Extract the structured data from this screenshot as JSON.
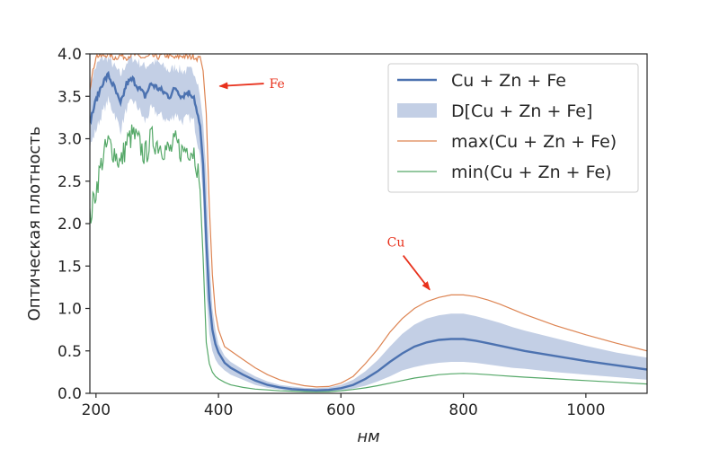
{
  "chart_data": {
    "type": "line",
    "xlabel": "нм",
    "ylabel": "Оптическая плотность",
    "xlim": [
      190,
      1100
    ],
    "ylim": [
      0.0,
      4.0
    ],
    "xticks": [
      200,
      400,
      600,
      800,
      1000
    ],
    "yticks": [
      0.0,
      0.5,
      1.0,
      1.5,
      2.0,
      2.5,
      3.0,
      3.5,
      4.0
    ],
    "ytick_labels": [
      "0.0",
      "0.5",
      "1.0",
      "1.5",
      "2.0",
      "2.5",
      "3.0",
      "3.5",
      "4.0"
    ],
    "grid": false,
    "legend_position": "top-right",
    "colors": {
      "mean": "#4c72b0",
      "band": "#c3cfe5",
      "max": "#dd8452",
      "min": "#55a868",
      "annotation": "#e8311c"
    },
    "x": [
      190,
      200,
      210,
      220,
      230,
      240,
      250,
      260,
      270,
      280,
      290,
      300,
      310,
      320,
      330,
      340,
      350,
      360,
      365,
      370,
      375,
      380,
      385,
      390,
      395,
      400,
      410,
      420,
      440,
      460,
      480,
      500,
      520,
      540,
      560,
      580,
      600,
      620,
      640,
      660,
      680,
      700,
      720,
      740,
      760,
      780,
      800,
      820,
      840,
      860,
      880,
      900,
      950,
      1000,
      1050,
      1100
    ],
    "series": [
      {
        "name": "Cu + Zn + Fe",
        "role": "mean",
        "values": [
          3.2,
          3.45,
          3.65,
          3.75,
          3.6,
          3.4,
          3.65,
          3.7,
          3.6,
          3.5,
          3.65,
          3.6,
          3.55,
          3.5,
          3.6,
          3.5,
          3.55,
          3.5,
          3.3,
          3.15,
          2.7,
          1.8,
          1.1,
          0.75,
          0.58,
          0.48,
          0.36,
          0.3,
          0.22,
          0.15,
          0.1,
          0.07,
          0.05,
          0.04,
          0.035,
          0.04,
          0.06,
          0.1,
          0.17,
          0.26,
          0.37,
          0.47,
          0.55,
          0.6,
          0.63,
          0.64,
          0.64,
          0.62,
          0.59,
          0.56,
          0.53,
          0.5,
          0.44,
          0.38,
          0.33,
          0.28
        ]
      },
      {
        "name": "D[Cu + Zn + Fe]",
        "role": "band",
        "upper": [
          3.65,
          3.85,
          3.95,
          3.95,
          3.85,
          3.75,
          3.9,
          3.95,
          3.9,
          3.85,
          3.9,
          3.9,
          3.85,
          3.8,
          3.85,
          3.8,
          3.8,
          3.8,
          3.7,
          3.5,
          3.2,
          2.6,
          1.6,
          1.0,
          0.75,
          0.58,
          0.44,
          0.37,
          0.28,
          0.2,
          0.14,
          0.1,
          0.08,
          0.065,
          0.06,
          0.07,
          0.1,
          0.16,
          0.26,
          0.39,
          0.55,
          0.7,
          0.81,
          0.88,
          0.92,
          0.94,
          0.94,
          0.91,
          0.87,
          0.83,
          0.78,
          0.74,
          0.65,
          0.56,
          0.48,
          0.42
        ],
        "lower": [
          2.9,
          3.1,
          3.3,
          3.45,
          3.3,
          3.1,
          3.35,
          3.45,
          3.35,
          3.2,
          3.35,
          3.3,
          3.25,
          3.2,
          3.3,
          3.2,
          3.25,
          3.2,
          3.0,
          2.8,
          2.3,
          1.2,
          0.7,
          0.5,
          0.4,
          0.34,
          0.27,
          0.22,
          0.16,
          0.1,
          0.065,
          0.045,
          0.03,
          0.025,
          0.02,
          0.022,
          0.035,
          0.055,
          0.09,
          0.14,
          0.2,
          0.27,
          0.31,
          0.34,
          0.36,
          0.37,
          0.37,
          0.36,
          0.34,
          0.32,
          0.3,
          0.29,
          0.25,
          0.22,
          0.19,
          0.16
        ]
      },
      {
        "name": "max(Cu + Zn + Fe)",
        "role": "max",
        "values": [
          3.6,
          3.98,
          3.97,
          4.0,
          3.95,
          3.98,
          3.96,
          4.0,
          3.97,
          3.95,
          3.98,
          3.96,
          3.99,
          3.97,
          3.95,
          3.98,
          3.96,
          3.97,
          3.95,
          3.97,
          3.8,
          3.3,
          2.2,
          1.4,
          0.95,
          0.75,
          0.55,
          0.5,
          0.4,
          0.3,
          0.22,
          0.16,
          0.12,
          0.09,
          0.075,
          0.08,
          0.12,
          0.2,
          0.35,
          0.52,
          0.72,
          0.88,
          1.0,
          1.08,
          1.13,
          1.16,
          1.16,
          1.14,
          1.1,
          1.05,
          0.99,
          0.93,
          0.8,
          0.69,
          0.59,
          0.5
        ]
      },
      {
        "name": "min(Cu + Zn + Fe)",
        "role": "min",
        "values": [
          2.05,
          2.4,
          2.75,
          2.95,
          2.85,
          2.7,
          2.95,
          3.05,
          2.95,
          2.8,
          3.0,
          2.95,
          2.9,
          2.85,
          2.95,
          2.85,
          2.9,
          2.85,
          2.7,
          2.4,
          1.6,
          0.6,
          0.35,
          0.25,
          0.2,
          0.17,
          0.13,
          0.1,
          0.07,
          0.05,
          0.04,
          0.03,
          0.025,
          0.02,
          0.018,
          0.02,
          0.03,
          0.045,
          0.065,
          0.09,
          0.12,
          0.15,
          0.18,
          0.2,
          0.22,
          0.23,
          0.235,
          0.23,
          0.22,
          0.21,
          0.2,
          0.19,
          0.17,
          0.15,
          0.13,
          0.11
        ]
      }
    ],
    "annotations": [
      {
        "text": "Fe",
        "x": 480,
        "y": 3.65,
        "arrow_to_x": 402,
        "arrow_to_y": 3.62
      },
      {
        "text": "Cu",
        "x": 690,
        "y": 1.73,
        "arrow_to_x": 745,
        "arrow_to_y": 1.22
      }
    ]
  }
}
